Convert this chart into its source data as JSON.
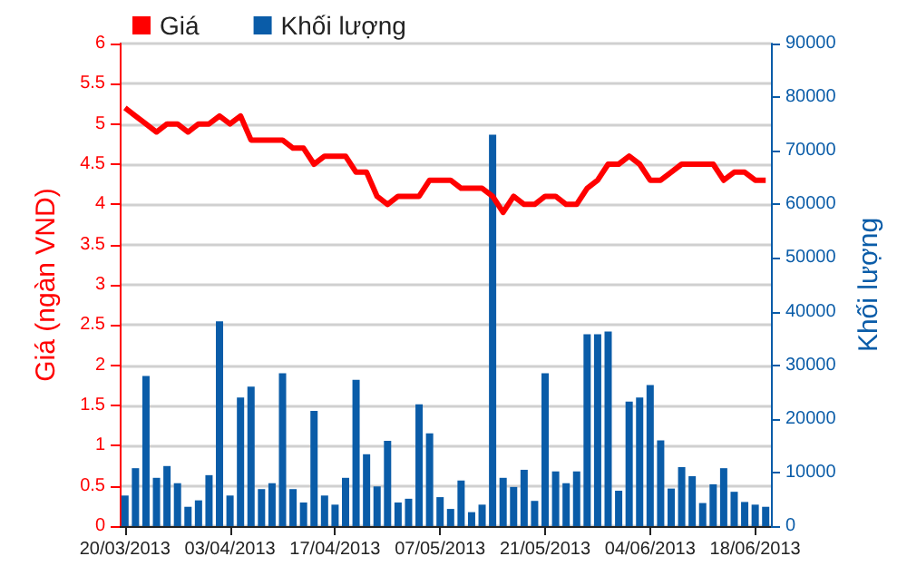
{
  "chart_data": {
    "type": "bar",
    "categories": [
      "20/03/2013",
      null,
      null,
      null,
      null,
      null,
      null,
      null,
      null,
      null,
      "03/04/2013",
      null,
      null,
      null,
      null,
      null,
      null,
      null,
      null,
      null,
      "17/04/2013",
      null,
      null,
      null,
      null,
      null,
      null,
      null,
      null,
      null,
      "07/05/2013",
      null,
      null,
      null,
      null,
      null,
      null,
      null,
      null,
      null,
      "21/05/2013",
      null,
      null,
      null,
      null,
      null,
      null,
      null,
      null,
      null,
      "04/06/2013",
      null,
      null,
      null,
      null,
      null,
      null,
      null,
      null,
      null,
      "18/06/2013",
      null
    ],
    "ylabel": "Giá (ngàn VND)",
    "y2label": "Khối lượng",
    "series": [
      {
        "name": "Khối lượng",
        "axis": "y2",
        "color": "#0a5ca8",
        "values": [
          5700,
          10800,
          28000,
          9000,
          11200,
          8000,
          3600,
          4800,
          9500,
          38200,
          5700,
          24000,
          26000,
          6900,
          8000,
          28500,
          6900,
          4400,
          21500,
          5700,
          4000,
          9000,
          27300,
          13400,
          7400,
          15900,
          4400,
          5100,
          22700,
          17300,
          5400,
          3200,
          8500,
          2600,
          4000,
          73000,
          9000,
          7300,
          10500,
          4700,
          28500,
          10200,
          8000,
          10200,
          35800,
          35800,
          36300,
          6600,
          23200,
          24000,
          26300,
          16000,
          7000,
          11000,
          9300,
          4300,
          7800,
          10800,
          6400,
          4500,
          4000,
          3600
        ]
      },
      {
        "name": "Giá",
        "type": "line",
        "color": "#ff0000",
        "values": [
          5.2,
          5.1,
          5.0,
          4.9,
          5.0,
          5.0,
          4.9,
          5.0,
          5.0,
          5.1,
          5.0,
          5.1,
          4.8,
          4.8,
          4.8,
          4.8,
          4.7,
          4.7,
          4.5,
          4.6,
          4.6,
          4.6,
          4.4,
          4.4,
          4.1,
          4.0,
          4.1,
          4.1,
          4.1,
          4.3,
          4.3,
          4.3,
          4.2,
          4.2,
          4.2,
          4.1,
          3.9,
          4.1,
          4.0,
          4.0,
          4.1,
          4.1,
          4.0,
          4.0,
          4.2,
          4.3,
          4.5,
          4.5,
          4.6,
          4.5,
          4.3,
          4.3,
          4.4,
          4.5,
          4.5,
          4.5,
          4.5,
          4.3,
          4.4,
          4.4,
          4.3,
          4.3
        ]
      }
    ],
    "ylim": [
      0,
      6
    ],
    "yticks": [
      0,
      0.5,
      1,
      1.5,
      2,
      2.5,
      3,
      3.5,
      4,
      4.5,
      5,
      5.5,
      6
    ],
    "y2lim": [
      0,
      90000
    ],
    "y2ticks": [
      0,
      10000,
      20000,
      30000,
      40000,
      50000,
      60000,
      70000,
      80000,
      90000
    ],
    "grid": "y",
    "legend": "top left",
    "marker": "none"
  }
}
